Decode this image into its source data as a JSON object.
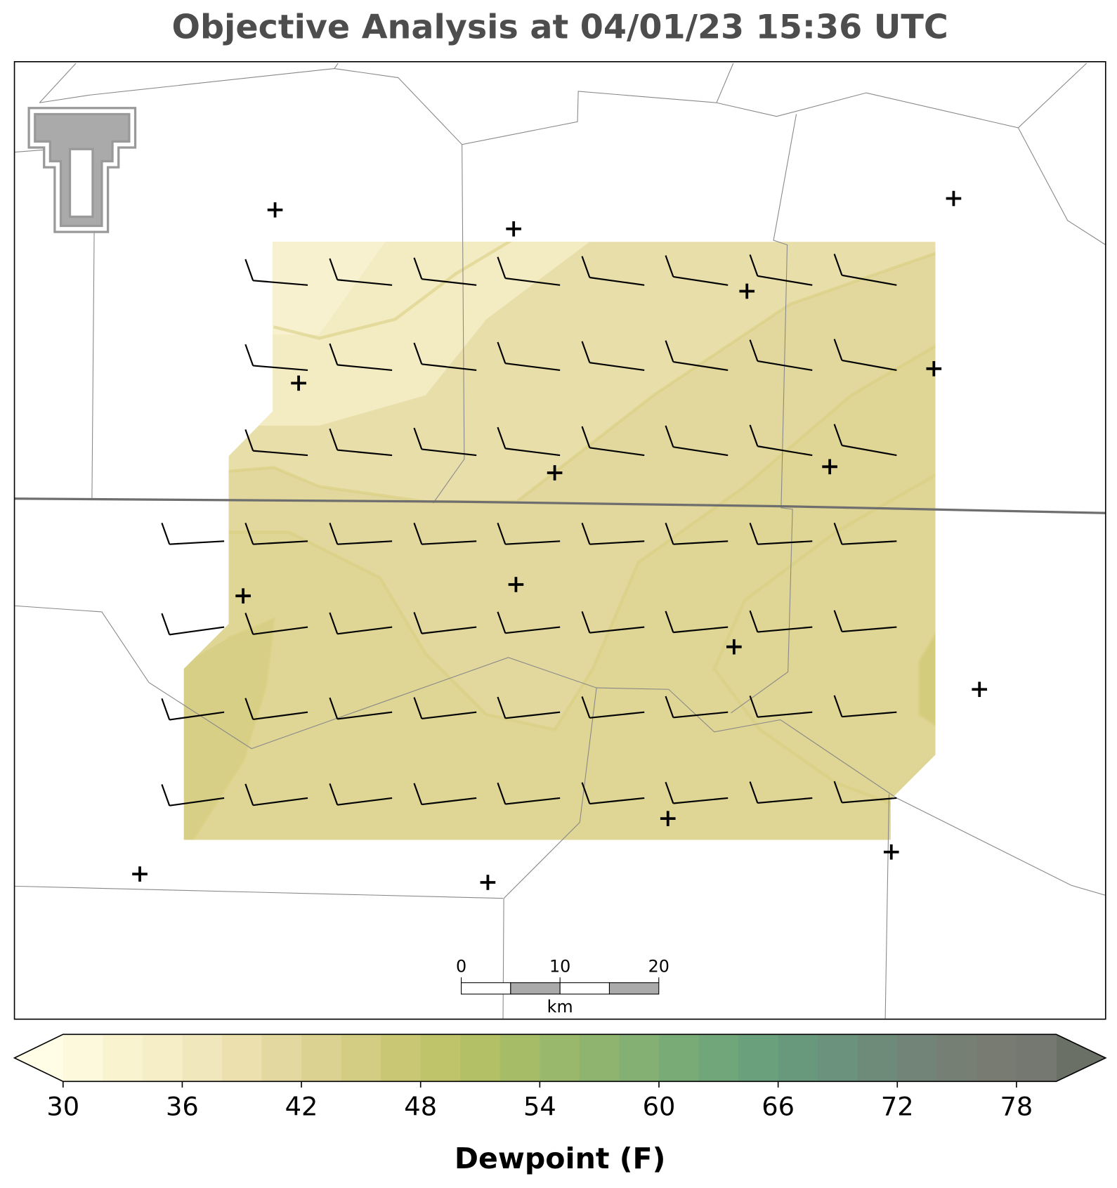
{
  "title": "Objective Analysis at 04/01/23 15:36 UTC",
  "scale_bar": {
    "lim": [
      0,
      20
    ],
    "ticks": [
      0,
      10,
      20
    ],
    "unit": "km"
  },
  "colorbar": {
    "label": "Dewpoint (F)",
    "lim": [
      30,
      80
    ],
    "ticks": [
      30,
      36,
      42,
      48,
      54,
      60,
      66,
      72,
      78
    ],
    "levels": [
      30,
      32,
      34,
      36,
      38,
      40,
      42,
      44,
      46,
      48,
      50,
      52,
      54,
      56,
      58,
      60,
      62,
      64,
      66,
      68,
      70,
      72,
      74,
      76,
      78,
      80
    ],
    "colors": [
      "#fdf9dc",
      "#f9f3d0",
      "#f5eec6",
      "#f0e7bd",
      "#ebe0ae",
      "#e3d89f",
      "#dbd291",
      "#d3cd83",
      "#c9c774",
      "#bfc36a",
      "#b3c065",
      "#a6bc66",
      "#9ab86b",
      "#8fb46f",
      "#84b074",
      "#79ab77",
      "#70a67a",
      "#6aa07c",
      "#68997d",
      "#6a927c",
      "#6e8b7a",
      "#728477",
      "#757f74",
      "#777b71",
      "#747870"
    ],
    "under_color": "#fffde6",
    "over_color": "#6b7066"
  }
}
